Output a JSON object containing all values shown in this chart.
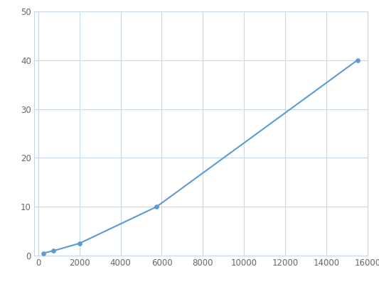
{
  "x": [
    250,
    750,
    2000,
    5750,
    15500
  ],
  "y": [
    0.5,
    1.0,
    2.5,
    10.0,
    40.0
  ],
  "line_color": "#5b9bd5",
  "marker_color": "#5b9bd5",
  "marker_style": "o",
  "marker_size": 4,
  "line_width": 1.5,
  "xlim": [
    -200,
    16000
  ],
  "ylim": [
    0,
    50
  ],
  "xticks": [
    0,
    2000,
    4000,
    6000,
    8000,
    10000,
    12000,
    14000,
    16000
  ],
  "yticks": [
    0,
    10,
    20,
    30,
    40,
    50
  ],
  "grid_color": "#c8d8e8",
  "background_color": "#ffffff",
  "tick_label_fontsize": 8.5,
  "tick_label_color": "#666666"
}
